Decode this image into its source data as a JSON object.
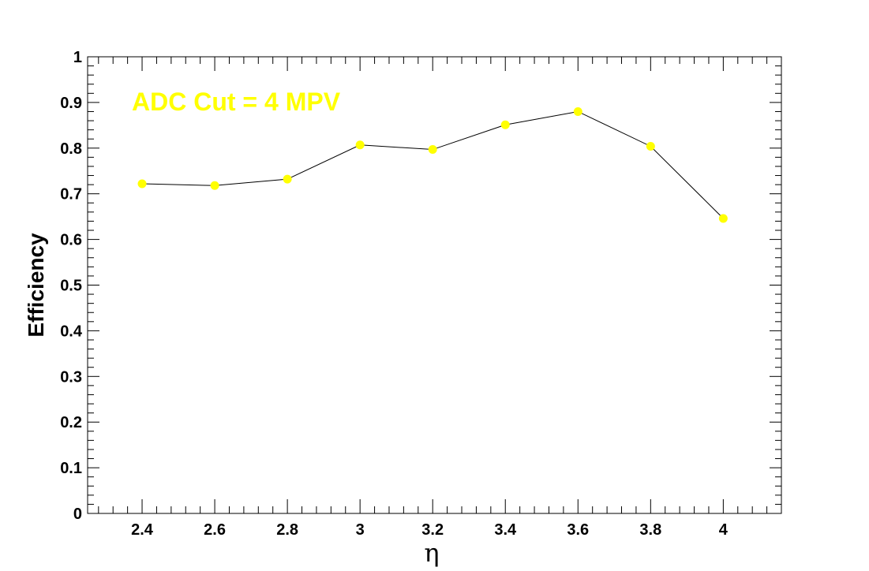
{
  "chart_data": {
    "type": "line",
    "xlabel": "η",
    "ylabel": "Efficiency",
    "annotation": "ADC Cut = 4 MPV",
    "xlim": [
      2.25,
      4.16
    ],
    "ylim": [
      0,
      1
    ],
    "x_ticks": [
      "2.4",
      "2.6",
      "2.8",
      "3",
      "3.2",
      "3.4",
      "3.6",
      "3.8",
      "4"
    ],
    "y_ticks": [
      "0",
      "0.1",
      "0.2",
      "0.3",
      "0.4",
      "0.5",
      "0.6",
      "0.7",
      "0.8",
      "0.9",
      "1"
    ],
    "series": [
      {
        "x": [
          2.4,
          2.6,
          2.8,
          3.0,
          3.2,
          3.4,
          3.6,
          3.8,
          4.0
        ],
        "y": [
          0.722,
          0.718,
          0.732,
          0.807,
          0.797,
          0.851,
          0.88,
          0.804,
          0.646
        ]
      }
    ],
    "grid": false,
    "colors": {
      "marker": "#ffff00",
      "line": "#000000",
      "annotation": "#ffff00"
    }
  }
}
